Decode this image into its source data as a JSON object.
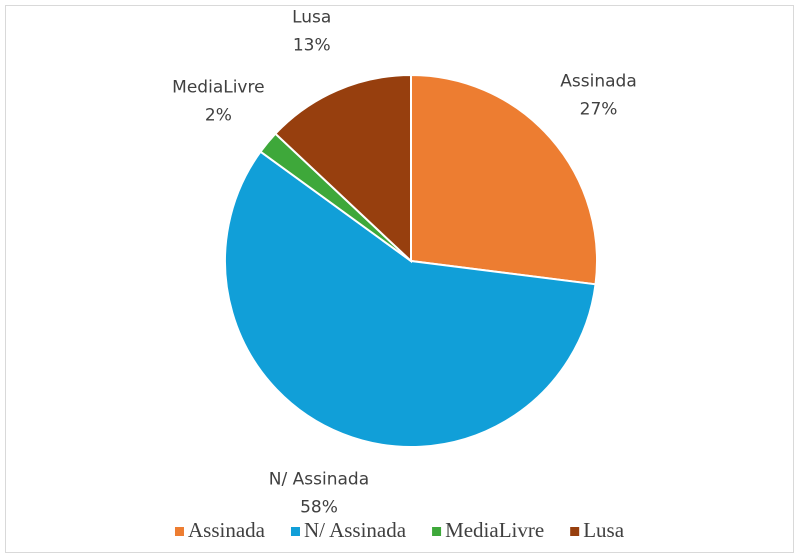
{
  "chart_data": {
    "type": "pie",
    "categories": [
      "Assinada",
      "N/ Assinada",
      "MediaLivre",
      "Lusa"
    ],
    "values": [
      27,
      58,
      2,
      13
    ],
    "value_labels": [
      "27%",
      "58%",
      "2%",
      "13%"
    ],
    "colors": [
      "#ED7D31",
      "#119FD8",
      "#3EA83A",
      "#973F0E"
    ],
    "legend": "bottom"
  }
}
